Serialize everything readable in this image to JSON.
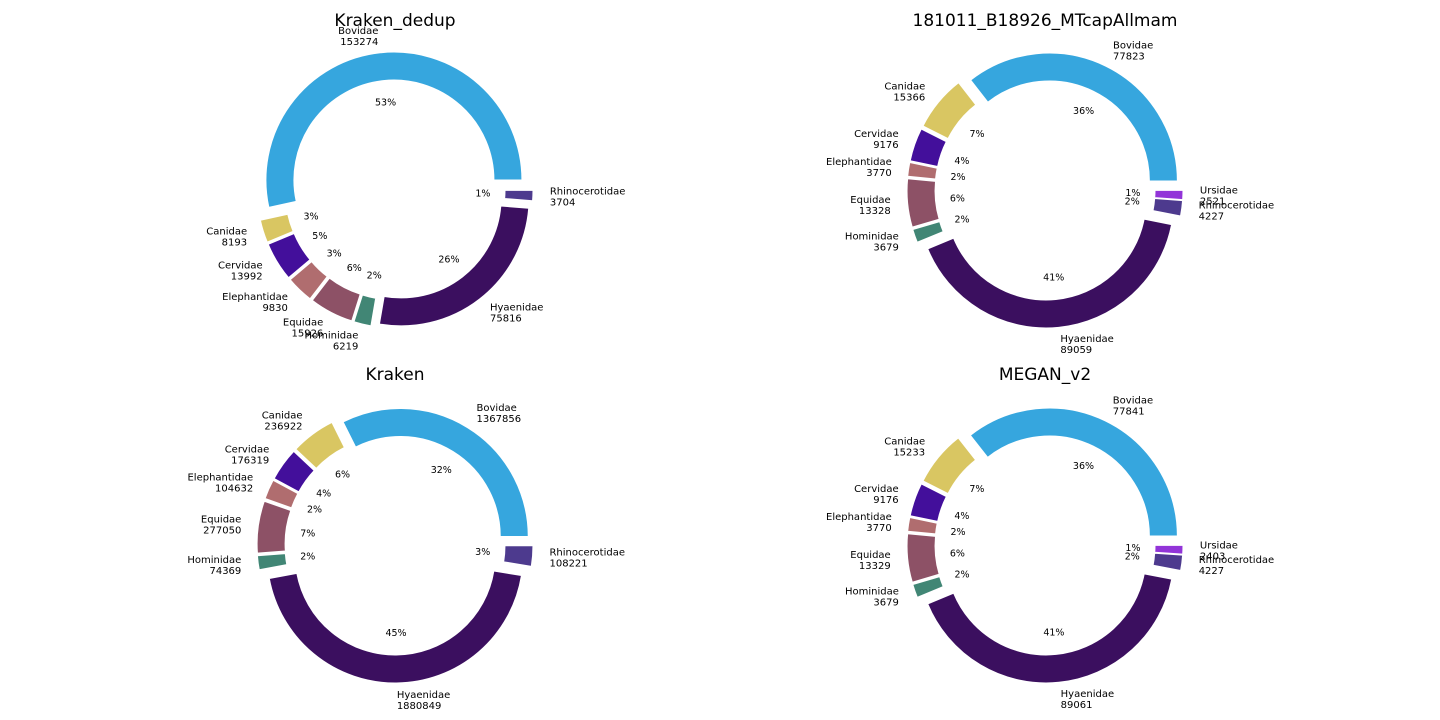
{
  "colors": {
    "Bovidae": "#36a6de",
    "Canidae": "#d9c662",
    "Cervidae": "#430f9b",
    "Elephantidae": "#b06d6f",
    "Equidae": "#8d5166",
    "Hominidae": "#418675",
    "Hyaenidae": "#3b0f5f",
    "Rhinocerotidae": "#4d3a8e",
    "Ursidae": "#9234d8"
  },
  "chart_data": [
    {
      "type": "pie",
      "title": "Kraken_dedup",
      "slices": [
        {
          "name": "Bovidae",
          "value": 153274,
          "pct_label": "53%"
        },
        {
          "name": "Canidae",
          "value": 8193,
          "pct_label": "3%"
        },
        {
          "name": "Cervidae",
          "value": 13992,
          "pct_label": "5%"
        },
        {
          "name": "Elephantidae",
          "value": 9830,
          "pct_label": "3%"
        },
        {
          "name": "Equidae",
          "value": 15926,
          "pct_label": "6%"
        },
        {
          "name": "Hominidae",
          "value": 6219,
          "pct_label": "2%"
        },
        {
          "name": "Hyaenidae",
          "value": 75816,
          "pct_label": "26%"
        },
        {
          "name": "Rhinocerotidae",
          "value": 3704,
          "pct_label": "1%"
        }
      ]
    },
    {
      "type": "pie",
      "title": "181011_B18926_MTcapAllmam",
      "slices": [
        {
          "name": "Bovidae",
          "value": 77823,
          "pct_label": "36%"
        },
        {
          "name": "Canidae",
          "value": 15366,
          "pct_label": "7%"
        },
        {
          "name": "Cervidae",
          "value": 9176,
          "pct_label": "4%"
        },
        {
          "name": "Elephantidae",
          "value": 3770,
          "pct_label": "2%"
        },
        {
          "name": "Equidae",
          "value": 13328,
          "pct_label": "6%"
        },
        {
          "name": "Hominidae",
          "value": 3679,
          "pct_label": "2%"
        },
        {
          "name": "Hyaenidae",
          "value": 89059,
          "pct_label": "41%"
        },
        {
          "name": "Rhinocerotidae",
          "value": 4227,
          "pct_label": "2%"
        },
        {
          "name": "Ursidae",
          "value": 2521,
          "pct_label": "1%"
        }
      ]
    },
    {
      "type": "pie",
      "title": "Kraken",
      "slices": [
        {
          "name": "Bovidae",
          "value": 1367856,
          "pct_label": "32%"
        },
        {
          "name": "Canidae",
          "value": 236922,
          "pct_label": "6%"
        },
        {
          "name": "Cervidae",
          "value": 176319,
          "pct_label": "4%"
        },
        {
          "name": "Elephantidae",
          "value": 104632,
          "pct_label": "2%"
        },
        {
          "name": "Equidae",
          "value": 277050,
          "pct_label": "7%"
        },
        {
          "name": "Hominidae",
          "value": 74369,
          "pct_label": "2%"
        },
        {
          "name": "Hyaenidae",
          "value": 1880849,
          "pct_label": "45%"
        },
        {
          "name": "Rhinocerotidae",
          "value": 108221,
          "pct_label": "3%"
        }
      ]
    },
    {
      "type": "pie",
      "title": "MEGAN_v2",
      "slices": [
        {
          "name": "Bovidae",
          "value": 77841,
          "pct_label": "36%"
        },
        {
          "name": "Canidae",
          "value": 15233,
          "pct_label": "7%"
        },
        {
          "name": "Cervidae",
          "value": 9176,
          "pct_label": "4%"
        },
        {
          "name": "Elephantidae",
          "value": 3770,
          "pct_label": "2%"
        },
        {
          "name": "Equidae",
          "value": 13329,
          "pct_label": "6%"
        },
        {
          "name": "Hominidae",
          "value": 3679,
          "pct_label": "2%"
        },
        {
          "name": "Hyaenidae",
          "value": 89061,
          "pct_label": "41%"
        },
        {
          "name": "Rhinocerotidae",
          "value": 4227,
          "pct_label": "2%"
        },
        {
          "name": "Ursidae",
          "value": 2403,
          "pct_label": "1%"
        }
      ]
    }
  ]
}
